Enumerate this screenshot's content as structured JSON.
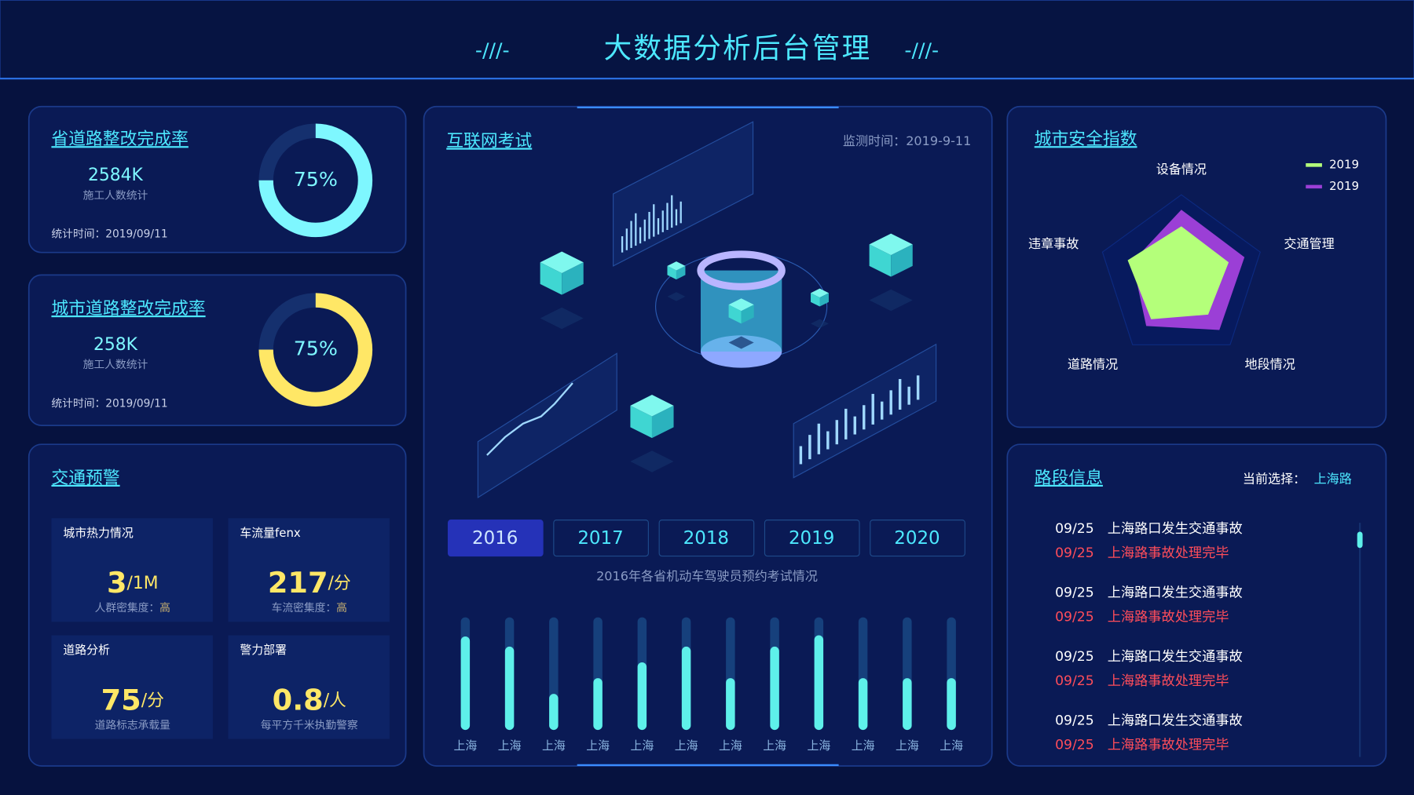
{
  "header": {
    "title": "大数据分析后台管理",
    "deco_left": "-///-",
    "deco_right": "-///-"
  },
  "kpi_cards": [
    {
      "title": "省道路整改完成率",
      "value": "2584K",
      "caption": "施工人数统计",
      "footer": "统计时间：2019/09/11",
      "percent": 75,
      "percent_label": "75%",
      "color": "#7ef7ff"
    },
    {
      "title": "城市道路整改完成率",
      "value": "258K",
      "caption": "施工人数统计",
      "footer": "统计时间：2019/09/11",
      "percent": 75,
      "percent_label": "75%",
      "color": "#ffe766"
    }
  ],
  "traffic": {
    "title": "交通预警",
    "tiles": [
      {
        "label": "城市热力情况",
        "value": "3",
        "unit": "/1M",
        "caption": "人群密集度：",
        "level": "高"
      },
      {
        "label": "车流量fenx",
        "value": "217",
        "unit": "/分",
        "caption": "车流密集度：",
        "level": "高"
      },
      {
        "label": "道路分析",
        "value": "75",
        "unit": "/分",
        "caption": "道路标志承载量"
      },
      {
        "label": "警力部署",
        "value": "0.8",
        "unit": "/人",
        "caption": "每平方千米执勤警察"
      }
    ]
  },
  "exam": {
    "title": "互联网考试",
    "monitor": "监测时间：2019-9-11",
    "years": [
      {
        "label": "2016",
        "active": true
      },
      {
        "label": "2017",
        "active": false
      },
      {
        "label": "2018",
        "active": false
      },
      {
        "label": "2019",
        "active": false
      },
      {
        "label": "2020",
        "active": false
      }
    ],
    "chart": {
      "type": "bar",
      "title": "2016年各省机动车驾驶员预约考试情况",
      "categories": [
        "上海",
        "上海",
        "上海",
        "上海",
        "上海",
        "上海",
        "上海",
        "上海",
        "上海",
        "上海",
        "上海",
        "上海"
      ],
      "values": [
        83,
        74,
        32,
        46,
        60,
        74,
        46,
        74,
        84,
        46,
        46,
        46
      ],
      "color": "#5ef0ea",
      "ylim": [
        0,
        100
      ]
    }
  },
  "safety": {
    "title": "城市安全指数",
    "chart": {
      "type": "radar",
      "axes": [
        "设备情况",
        "交通管理",
        "地段情况",
        "道路情况",
        "违章事故"
      ],
      "rlim": [
        0,
        100
      ],
      "series": [
        {
          "name": "2019",
          "color": "#b4ff7a",
          "values": [
            62,
            60,
            55,
            62,
            68
          ]
        },
        {
          "name": "2019",
          "color": "#9b3fd6",
          "values": [
            82,
            80,
            78,
            72,
            62
          ]
        }
      ]
    }
  },
  "road": {
    "title": "路段信息",
    "select_label": "当前选择：",
    "select_value": "上海路",
    "events": [
      {
        "date": "09/25",
        "text": "上海路口发生交通事故",
        "done_date": "09/25",
        "done_text": "上海路事故处理完毕"
      },
      {
        "date": "09/25",
        "text": "上海路口发生交通事故",
        "done_date": "09/25",
        "done_text": "上海路事故处理完毕"
      },
      {
        "date": "09/25",
        "text": "上海路口发生交通事故",
        "done_date": "09/25",
        "done_text": "上海路事故处理完毕"
      },
      {
        "date": "09/25",
        "text": "上海路口发生交通事故",
        "done_date": "09/25",
        "done_text": "上海路事故处理完毕"
      }
    ]
  }
}
